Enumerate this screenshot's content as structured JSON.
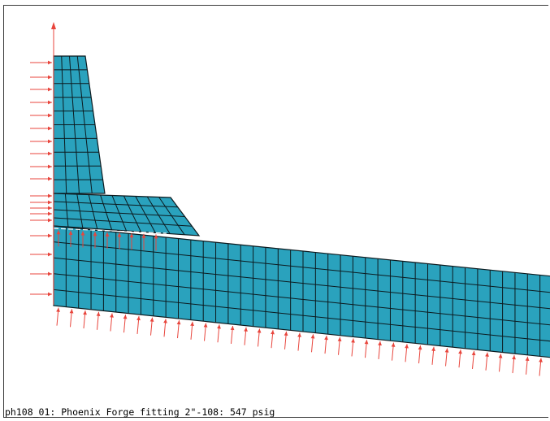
{
  "caption": "ph108_01: Phoenix Forge fitting 2\"-108: 547 psig",
  "colors": {
    "mesh_fill": "#2aa2bd",
    "mesh_line": "#0c1a1f",
    "load_arrow": "#e8453c",
    "axis_arrow": "#e8453c",
    "background": "#ffffff"
  },
  "icons": {
    "axis": "vertical-axis-arrow",
    "pressure": "pressure-load-arrow"
  }
}
